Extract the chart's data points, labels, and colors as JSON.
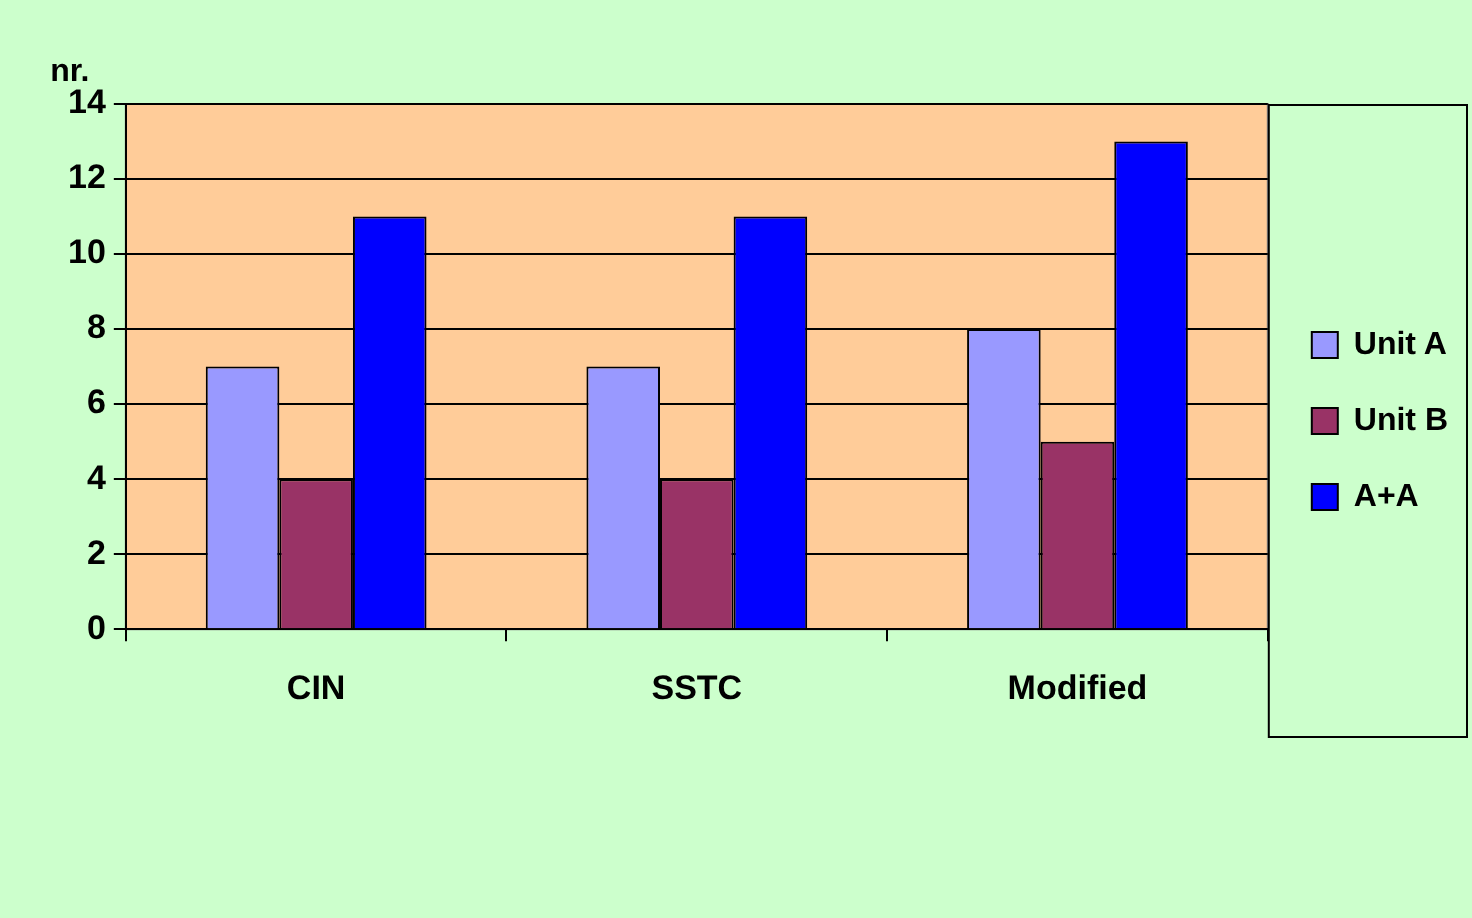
{
  "chart_data": {
    "type": "bar",
    "ylabel": "nr.",
    "categories": [
      "CIN",
      "SSTC",
      "Modified"
    ],
    "series": [
      {
        "name": "Unit A",
        "color": "#9999ff",
        "values": [
          7,
          7,
          8
        ]
      },
      {
        "name": "Unit B",
        "color": "#993366",
        "values": [
          4,
          4,
          5
        ]
      },
      {
        "name": "A+A",
        "color": "#0000ff",
        "values": [
          11,
          11,
          13
        ]
      }
    ],
    "ylim": [
      0,
      14
    ],
    "yticks": [
      0,
      2,
      4,
      6,
      8,
      10,
      12,
      14
    ],
    "grid": "y",
    "legend": "right"
  }
}
